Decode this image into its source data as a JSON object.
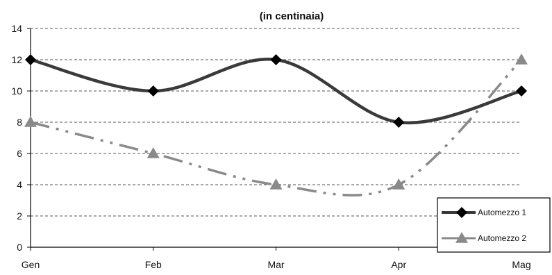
{
  "chart_data": {
    "type": "line",
    "title": "",
    "subtitle": "(in centinaia)",
    "xlabel": "",
    "ylabel": "",
    "categories": [
      "Gen",
      "Feb",
      "Mar",
      "Apr",
      "Mag"
    ],
    "ylim": [
      0,
      14
    ],
    "yticks": [
      0,
      2,
      4,
      6,
      8,
      10,
      12,
      14
    ],
    "grid": "horizontal-dashed",
    "legend_position": "bottom-right",
    "series": [
      {
        "name": "Automezzo 1",
        "values": [
          12,
          10,
          12,
          8,
          10
        ],
        "color": "#3a3a3a",
        "marker": "diamond",
        "line_style": "solid"
      },
      {
        "name": "Automezzo 2",
        "values": [
          8,
          6,
          4,
          4,
          12
        ],
        "color": "#8a8a8a",
        "marker": "triangle",
        "line_style": "dash-dot"
      }
    ]
  }
}
